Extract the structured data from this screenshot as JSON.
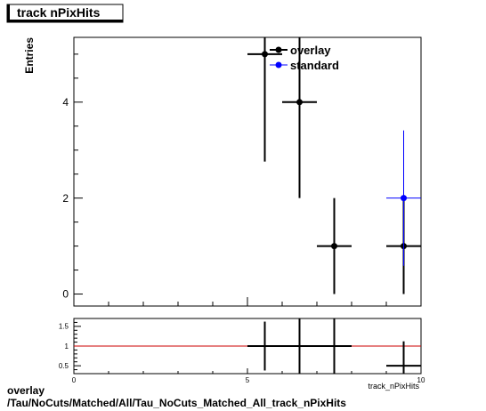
{
  "chart_data": [
    {
      "type": "scatter",
      "title": "track nPixHits",
      "xlabel": "track_nPixHits",
      "ylabel": "Entries",
      "xlim": [
        0,
        10
      ],
      "ylim": [
        -0.25,
        5.35
      ],
      "xticks": [
        {
          "v": 0,
          "label": "0"
        },
        {
          "v": 5,
          "label": "5"
        },
        {
          "v": 10,
          "label": "10"
        }
      ],
      "yticks": [
        {
          "v": 0,
          "label": "0"
        },
        {
          "v": 2,
          "label": "2"
        },
        {
          "v": 4,
          "label": "4"
        }
      ],
      "legend_position": "top-center",
      "series": [
        {
          "name": "overlay",
          "color": "#000000",
          "points": [
            {
              "x": 5.5,
              "y": 5,
              "xerr": 0.5,
              "yerr_low": 2.24,
              "yerr_high": 2.24
            },
            {
              "x": 6.5,
              "y": 4,
              "xerr": 0.5,
              "yerr_low": 2.0,
              "yerr_high": 2.0
            },
            {
              "x": 7.5,
              "y": 1,
              "xerr": 0.5,
              "yerr_low": 1.0,
              "yerr_high": 1.0
            },
            {
              "x": 9.5,
              "y": 1,
              "xerr": 0.5,
              "yerr_low": 1.0,
              "yerr_high": 1.0
            }
          ]
        },
        {
          "name": "standard",
          "color": "#0000ff",
          "points": [
            {
              "x": 9.5,
              "y": 2,
              "xerr": 0.5,
              "yerr_low": 1.41,
              "yerr_high": 1.41
            }
          ]
        }
      ]
    },
    {
      "type": "scatter",
      "xlabel": "track_nPixHits",
      "xlim": [
        0,
        10
      ],
      "ylim": [
        0.3,
        1.7
      ],
      "xticks": [
        {
          "v": 0,
          "label": "0"
        },
        {
          "v": 5,
          "label": "5"
        },
        {
          "v": 10,
          "label": "10"
        }
      ],
      "yticks": [
        {
          "v": 0.5,
          "label": "0.5"
        },
        {
          "v": 1,
          "label": "1"
        },
        {
          "v": 1.5,
          "label": "1.5"
        }
      ],
      "reference_line": {
        "y": 1,
        "color": "#cc0000"
      },
      "series": [
        {
          "color": "#000000",
          "points": [
            {
              "x": 5.5,
              "y": 1,
              "xerr": 0.5,
              "yerr_low": 0.62,
              "yerr_high": 0.62
            },
            {
              "x": 6.5,
              "y": 1,
              "xerr": 0.5,
              "yerr_low": 0.72,
              "yerr_high": 0.72
            },
            {
              "x": 7.5,
              "y": 1,
              "xerr": 0.5,
              "yerr_low": 0.7,
              "yerr_high": 0.7
            },
            {
              "x": 9.5,
              "y": 0.5,
              "xerr": 0.5,
              "yerr_low": 0.3,
              "yerr_high": 0.62
            }
          ]
        }
      ]
    }
  ],
  "footer": {
    "line1": "overlay",
    "line2": "/Tau/NoCuts/Matched/All/Tau_NoCuts_Matched_All_track_nPixHits"
  }
}
